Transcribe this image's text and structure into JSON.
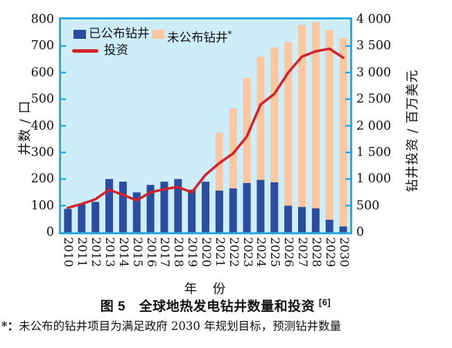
{
  "figure": {
    "caption": {
      "text": "图 5　全球地热发电钻井数量和投资",
      "ref": "[6]"
    },
    "footnote": {
      "marker": "*：",
      "text": "未公布的钻井项目为满足政府 2030 年规划目标，预测钻井数量"
    }
  },
  "axes": {
    "left_label": "井数 / 口",
    "right_label": "钻井投资 / 百万美元",
    "x_label": "年　份",
    "left_ticks": [
      "0",
      "100",
      "200",
      "300",
      "400",
      "500",
      "600",
      "700",
      "800"
    ],
    "right_ticks": [
      "0",
      "500",
      "1 000",
      "1 500",
      "2 000",
      "2 500",
      "3 000",
      "3 500",
      "4 000"
    ]
  },
  "legend": {
    "items": [
      {
        "label": "已公布钻井",
        "sup": "",
        "type": "bar"
      },
      {
        "label": "未公布钻井",
        "sup": "*",
        "type": "bar"
      },
      {
        "label": "投资",
        "sup": "",
        "type": "line"
      }
    ]
  },
  "colors": {
    "announced_bar": "#2c4d9d",
    "unannounced_bar": "#f9c8a3",
    "investment_line": "#d5222a",
    "plot_background": "#cdedf9",
    "axis": "#2aa9e0",
    "text": "#111111"
  },
  "chart_data": {
    "type": "bar",
    "subtype": "stacked-bars-with-line",
    "categories": [
      "2010",
      "2011",
      "2012",
      "2013",
      "2014",
      "2015",
      "2016",
      "2017",
      "2018",
      "2019",
      "2020",
      "2021",
      "2022",
      "2023",
      "2024",
      "2025",
      "2026",
      "2027",
      "2028",
      "2029",
      "2030"
    ],
    "series": [
      {
        "name": "已公布钻井",
        "axis": "left",
        "values": [
          88,
          105,
          114,
          200,
          190,
          150,
          178,
          190,
          200,
          160,
          190,
          157,
          165,
          185,
          197,
          188,
          100,
          95,
          90,
          47,
          22
        ]
      },
      {
        "name": "未公布钻井*",
        "axis": "left",
        "values": [
          0,
          0,
          0,
          0,
          0,
          0,
          0,
          0,
          0,
          0,
          0,
          218,
          300,
          395,
          463,
          507,
          615,
          685,
          700,
          713,
          708
        ]
      },
      {
        "name": "投资",
        "axis": "right",
        "type": "line",
        "values": [
          460,
          530,
          620,
          800,
          700,
          600,
          750,
          810,
          850,
          750,
          1080,
          1300,
          1480,
          1800,
          2400,
          2600,
          3000,
          3300,
          3400,
          3450,
          3280
        ]
      }
    ],
    "left_ylim": [
      0,
      800
    ],
    "right_ylim": [
      0,
      4000
    ],
    "left_tick_step": 100,
    "right_tick_step": 500,
    "title": "图 5　全球地热发电钻井数量和投资 [6]",
    "xlabel": "年　份",
    "ylabel_left": "井数 / 口",
    "ylabel_right": "钻井投资 / 百万美元",
    "grid": false,
    "legend_position": "upper-left-inside"
  }
}
